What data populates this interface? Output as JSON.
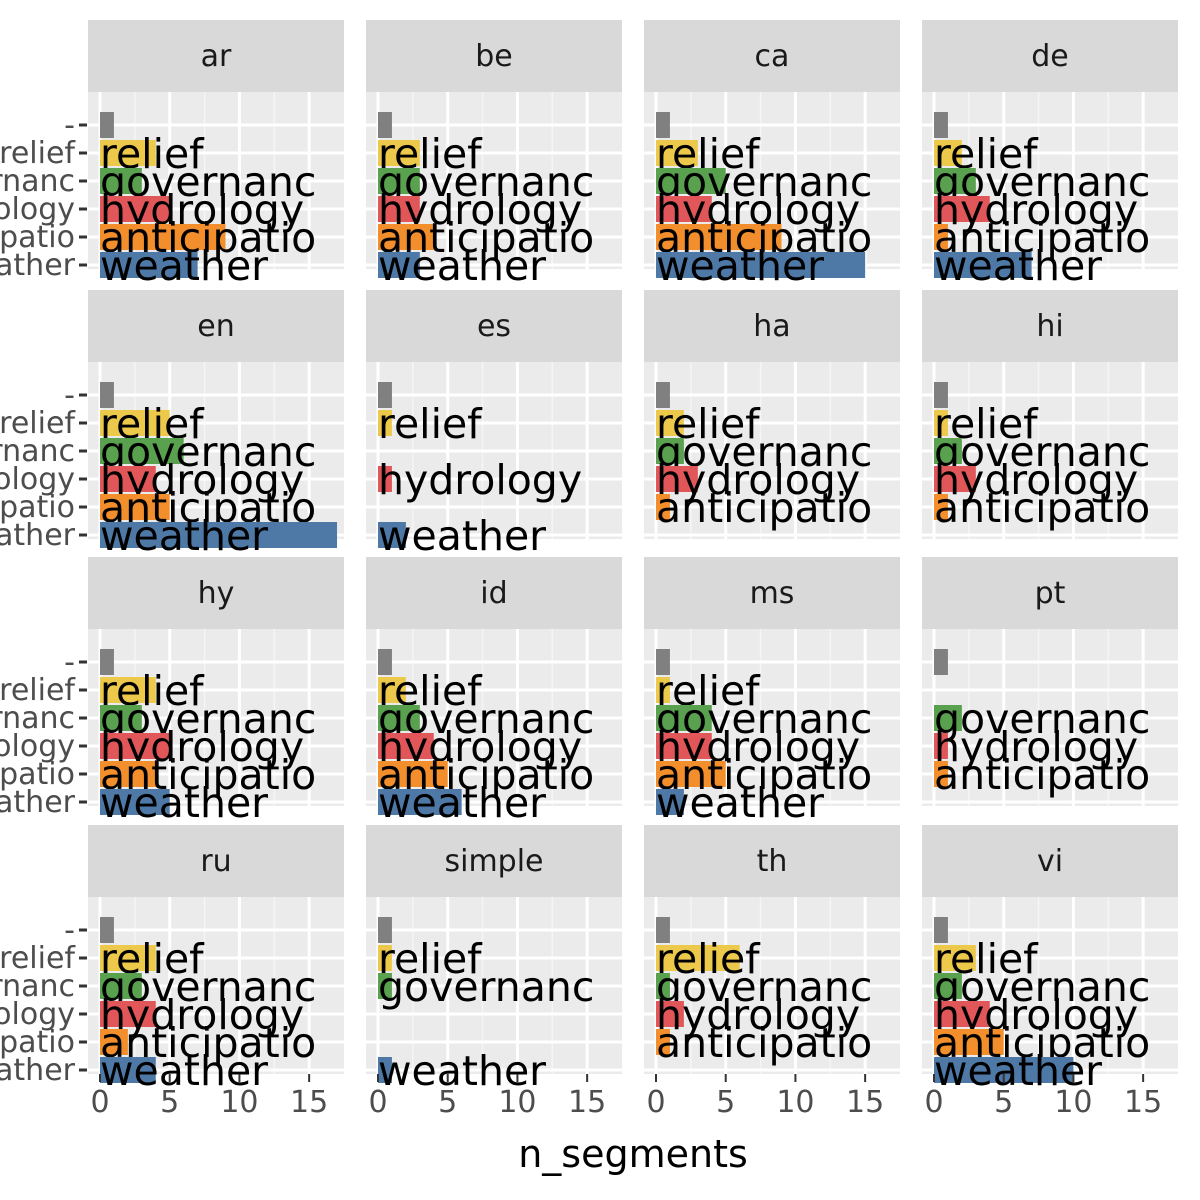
{
  "chart_data": {
    "type": "bar",
    "orientation": "horizontal",
    "faceted": true,
    "facet_grid": [
      4,
      4
    ],
    "xlabel": "n_segments",
    "ylabel": "",
    "xlim": [
      0,
      17.5
    ],
    "x_ticks": [
      "0",
      "5",
      "10",
      "15"
    ],
    "grid": true,
    "legend": "none",
    "categories": [
      "-",
      "relief",
      "governanc",
      "hydrology",
      "anticipatio",
      "weather"
    ],
    "colors": {
      "-": "#808080",
      "relief": "#ecc94b",
      "governanc": "#59a14f",
      "hydrology": "#e15759",
      "anticipatio": "#f28e2b",
      "weather": "#4e79a7"
    },
    "panel_bg": "#ebebeb",
    "strip_bg": "#d9d9d9",
    "facets": [
      {
        "name": "ar",
        "values": [
          1,
          4,
          3,
          5,
          9,
          7
        ],
        "labels": [
          "",
          "relief",
          "governanc",
          "hydrology",
          "anticipatio",
          "weather"
        ]
      },
      {
        "name": "be",
        "values": [
          1,
          3,
          3,
          3,
          4,
          3
        ],
        "labels": [
          "",
          "relief",
          "governanc",
          "hydrology",
          "anticipatio",
          "weather"
        ]
      },
      {
        "name": "ca",
        "values": [
          1,
          3,
          5,
          4,
          9,
          15
        ],
        "labels": [
          "",
          "relief",
          "governanc",
          "hydrology",
          "anticipatio",
          "weather"
        ]
      },
      {
        "name": "de",
        "values": [
          1,
          2,
          3,
          4,
          1,
          7
        ],
        "labels": [
          "",
          "relief",
          "governanc",
          "hydrology",
          "anticipatio",
          "weather"
        ]
      },
      {
        "name": "en",
        "values": [
          1,
          5,
          6,
          4,
          5,
          17
        ],
        "labels": [
          "",
          "relief",
          "governanc",
          "hydrology",
          "anticipatio",
          "weather"
        ]
      },
      {
        "name": "es",
        "values": [
          1,
          1,
          0,
          1,
          0,
          2
        ],
        "labels": [
          "",
          "relief",
          "",
          "hydrology",
          "",
          "weather"
        ]
      },
      {
        "name": "ha",
        "values": [
          1,
          2,
          2,
          3,
          1,
          0
        ],
        "labels": [
          "",
          "relief",
          "governanc",
          "hydrology",
          "anticipatio",
          ""
        ]
      },
      {
        "name": "hi",
        "values": [
          1,
          1,
          2,
          3,
          1,
          0
        ],
        "labels": [
          "",
          "relief",
          "governanc",
          "hydrology",
          "anticipatio",
          ""
        ]
      },
      {
        "name": "hy",
        "values": [
          1,
          4,
          3,
          5,
          4,
          5
        ],
        "labels": [
          "",
          "relief",
          "governanc",
          "hydrology",
          "anticipatio",
          "weather"
        ]
      },
      {
        "name": "id",
        "values": [
          1,
          2,
          3,
          4,
          5,
          6
        ],
        "labels": [
          "",
          "relief",
          "governanc",
          "hydrology",
          "anticipatio",
          "weather"
        ]
      },
      {
        "name": "ms",
        "values": [
          1,
          1,
          4,
          4,
          5,
          2
        ],
        "labels": [
          "",
          "relief",
          "governanc",
          "hydrology",
          "anticipatio",
          "weather"
        ]
      },
      {
        "name": "pt",
        "values": [
          1,
          0,
          2,
          1,
          1,
          0
        ],
        "labels": [
          "",
          "",
          "governanc",
          "hydrology",
          "anticipatio",
          ""
        ]
      },
      {
        "name": "ru",
        "values": [
          1,
          4,
          3,
          4,
          2,
          4
        ],
        "labels": [
          "",
          "relief",
          "governanc",
          "hydrology",
          "anticipatio",
          "weather"
        ]
      },
      {
        "name": "simple",
        "values": [
          1,
          1,
          1,
          0,
          0,
          1
        ],
        "labels": [
          "",
          "relief",
          "governanc",
          "",
          "",
          "weather"
        ]
      },
      {
        "name": "th",
        "values": [
          1,
          6,
          1,
          2,
          1,
          0
        ],
        "labels": [
          "",
          "relief",
          "governanc",
          "hydrology",
          "anticipatio",
          ""
        ]
      },
      {
        "name": "vi",
        "values": [
          1,
          3,
          2,
          4,
          5,
          10
        ],
        "labels": [
          "",
          "relief",
          "governanc",
          "hydrology",
          "anticipatio",
          "weather"
        ]
      }
    ]
  }
}
